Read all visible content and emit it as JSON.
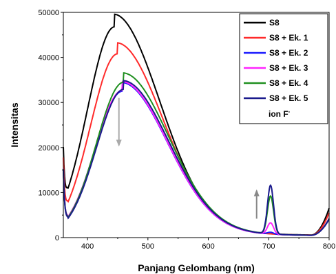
{
  "chart_data": {
    "type": "line",
    "xlabel": "Panjang Gelombang (nm)",
    "ylabel": "Intensitas",
    "xlim": [
      360,
      800
    ],
    "ylim": [
      0,
      50000
    ],
    "x_ticks": [
      "400",
      "500",
      "600",
      "700",
      "800"
    ],
    "y_ticks": [
      "0",
      "10000",
      "20000",
      "30000",
      "40000",
      "50000"
    ],
    "legend_position": "top-right",
    "legend_note": {
      "text": "ion F",
      "superscript": "-"
    },
    "series": [
      {
        "name": "S8",
        "color": "#000000",
        "peak1": 46500,
        "peak1_x": 445,
        "peak2": 0,
        "spike": 6000
      },
      {
        "name": "S8 + Ek. 1",
        "color": "#ff2a2a",
        "peak1": 40500,
        "peak1_x": 450,
        "peak2": 0,
        "spike": 5000
      },
      {
        "name": "S8 + Ek. 2",
        "color": "#1a1aff",
        "peak1": 32200,
        "peak1_x": 458,
        "peak2": 400,
        "spike": 3800
      },
      {
        "name": "S8 + Ek. 3",
        "color": "#ff22ff",
        "peak1": 32400,
        "peak1_x": 458,
        "peak2": 2500,
        "spike": 3800
      },
      {
        "name": "S8 + Ek. 4",
        "color": "#1f8f1f",
        "peak1": 34200,
        "peak1_x": 460,
        "peak2": 8400,
        "spike": 3700
      },
      {
        "name": "S8 + Ek. 5",
        "color": "#1a1a8c",
        "peak1": 32600,
        "peak1_x": 460,
        "peak2": 10800,
        "spike": 3600
      }
    ],
    "arrows": [
      {
        "x": 452,
        "from": 31000,
        "to": 20500,
        "direction": "down",
        "color": "#aaaaaa"
      },
      {
        "x": 680,
        "from": 4200,
        "to": 10400,
        "direction": "up",
        "color": "#888888"
      }
    ]
  }
}
